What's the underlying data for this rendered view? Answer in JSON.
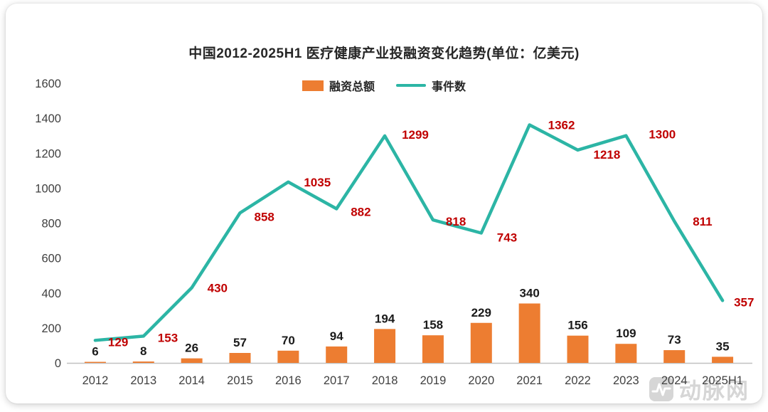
{
  "chart_data": {
    "type": "combo-bar-line",
    "title": "中国2012-2025H1 医疗健康产业投融资变化趋势(单位：亿美元)",
    "categories": [
      "2012",
      "2013",
      "2014",
      "2015",
      "2016",
      "2017",
      "2018",
      "2019",
      "2020",
      "2021",
      "2022",
      "2023",
      "2024",
      "2025H1"
    ],
    "series": [
      {
        "name": "融资总额",
        "type": "bar",
        "color": "#ED7D31",
        "label_color": "#1a1a1a",
        "values": [
          6,
          8,
          26,
          57,
          70,
          94,
          194,
          158,
          229,
          340,
          156,
          109,
          73,
          35
        ]
      },
      {
        "name": "事件数",
        "type": "line",
        "color": "#2CB5A5",
        "label_color": "#C00000",
        "values": [
          129,
          153,
          430,
          858,
          1035,
          882,
          1299,
          818,
          743,
          1362,
          1218,
          1300,
          811,
          357
        ]
      }
    ],
    "ylim": [
      0,
      1600
    ],
    "ytick_step": 200,
    "grid": false,
    "legend_position": "top-center"
  },
  "watermark": {
    "text": "动脉网"
  }
}
